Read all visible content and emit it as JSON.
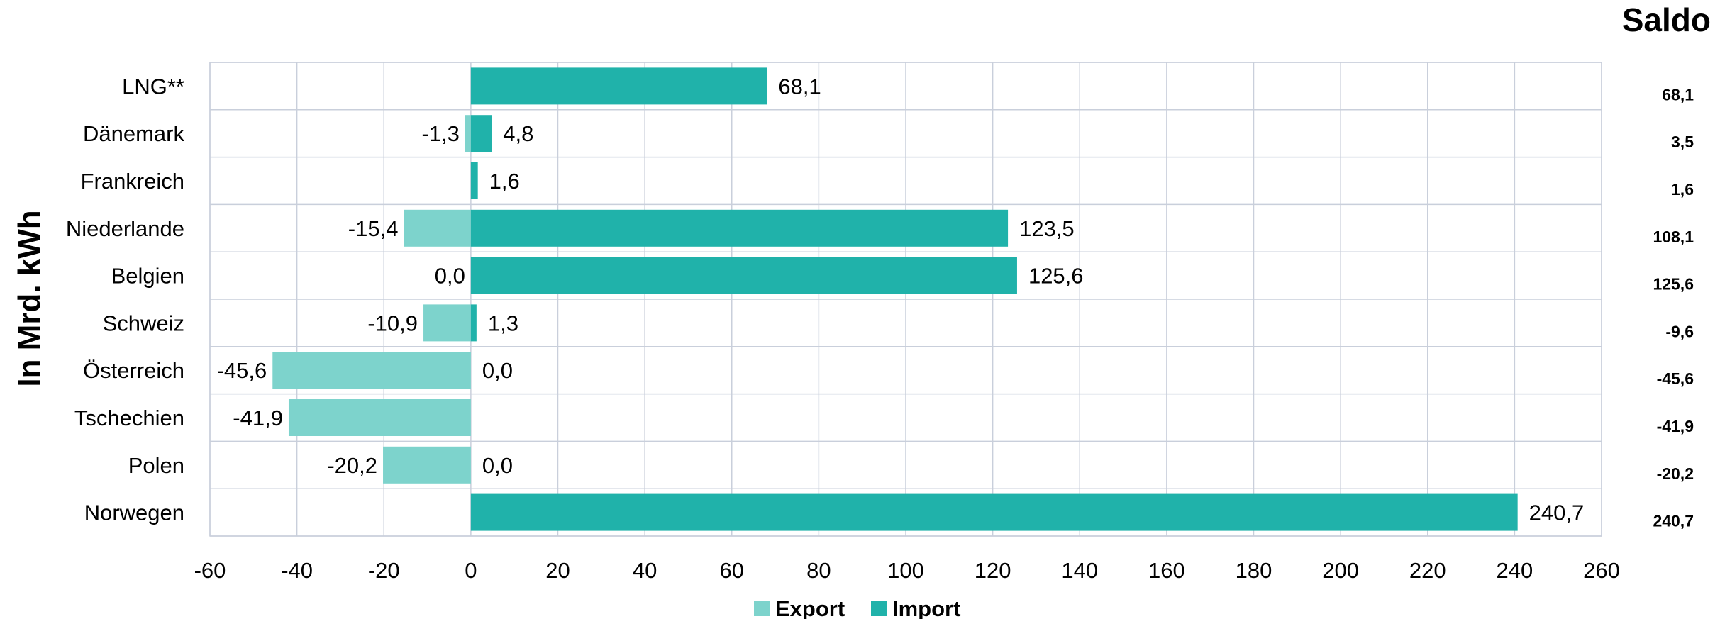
{
  "chart_data": {
    "type": "bar",
    "orientation": "horizontal",
    "stacked": true,
    "title": "",
    "xlabel": "",
    "ylabel": "In Mrd. kWh",
    "xlim": [
      -60,
      260
    ],
    "xticks": [
      -60,
      -40,
      -20,
      0,
      20,
      40,
      60,
      80,
      100,
      120,
      140,
      160,
      180,
      200,
      220,
      240,
      260
    ],
    "grid": true,
    "legend_position": "bottom-center",
    "categories": [
      "LNG**",
      "Dänemark",
      "Frankreich",
      "Niederlande",
      "Belgien",
      "Schweiz",
      "Österreich",
      "Tschechien",
      "Polen",
      "Norwegen"
    ],
    "series": [
      {
        "name": "Export",
        "color": "#7dd3cc",
        "values": [
          null,
          -1.3,
          null,
          -15.4,
          0.0,
          -10.9,
          -45.6,
          -41.9,
          -20.2,
          null
        ],
        "labels": [
          "",
          "-1,3",
          "",
          "-15,4",
          "0,0",
          "-10,9",
          "-45,6",
          "-41,9",
          "-20,2",
          ""
        ]
      },
      {
        "name": "Import",
        "color": "#20b2aa",
        "values": [
          68.1,
          4.8,
          1.6,
          123.5,
          125.6,
          1.3,
          0.0,
          null,
          0.0,
          240.7
        ],
        "labels": [
          "68,1",
          "4,8",
          "1,6",
          "123,5",
          "125,6",
          "1,3",
          "0,0",
          "",
          "0,0",
          "240,7"
        ]
      }
    ],
    "saldo": {
      "title": "Saldo",
      "values": [
        "68,1",
        "3,5",
        "1,6",
        "108,1",
        "125,6",
        "-9,6",
        "-45,6",
        "-41,9",
        "-20,2",
        "240,7"
      ]
    }
  }
}
